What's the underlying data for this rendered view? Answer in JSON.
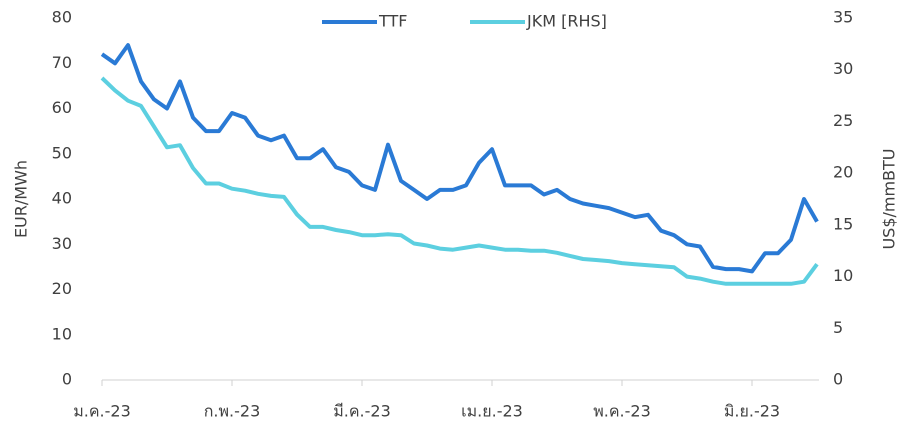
{
  "chart_data": {
    "type": "line",
    "categories": [
      "ม.ค.-23",
      null,
      null,
      null,
      null,
      null,
      null,
      null,
      null,
      null,
      "ก.พ.-23",
      null,
      null,
      null,
      null,
      null,
      null,
      null,
      null,
      null,
      "มี.ค.-23",
      null,
      null,
      null,
      null,
      null,
      null,
      null,
      null,
      null,
      "เม.ย.-23",
      null,
      null,
      null,
      null,
      null,
      null,
      null,
      null,
      null,
      "พ.ค.-23",
      null,
      null,
      null,
      null,
      null,
      null,
      null,
      null,
      null,
      "มิ.ย.-23",
      null,
      null,
      null,
      null,
      null
    ],
    "series": [
      {
        "name": "TTF",
        "color": "#2a7ad5",
        "values": [
          72,
          70,
          74,
          66,
          62,
          60,
          66,
          58,
          55,
          55,
          59,
          58,
          54,
          53,
          54,
          49,
          49,
          51,
          47,
          46,
          43,
          42,
          52,
          44,
          42,
          40,
          42,
          42,
          43,
          48,
          51,
          43,
          43,
          43,
          41,
          42,
          40,
          39,
          38.5,
          38,
          37,
          36,
          36.5,
          33,
          32,
          30,
          29.5,
          25,
          24.5,
          24.5,
          24,
          28,
          28,
          31,
          40,
          35
        ]
      },
      {
        "name": "JKM [RHS]",
        "color": "#5ccfe0",
        "axis": "y2",
        "values": [
          29.2,
          28,
          27,
          26.5,
          24.5,
          22.5,
          22.7,
          20.5,
          19,
          19,
          18.5,
          18.3,
          18,
          17.8,
          17.7,
          16,
          14.8,
          14.8,
          14.5,
          14.3,
          14,
          14,
          14.1,
          14,
          13.2,
          13,
          12.7,
          12.6,
          12.8,
          13,
          12.8,
          12.6,
          12.6,
          12.5,
          12.5,
          12.3,
          12,
          11.7,
          11.6,
          11.5,
          11.3,
          11.2,
          11.1,
          11,
          10.9,
          10,
          9.8,
          9.5,
          9.3,
          9.3,
          9.3,
          9.3,
          9.3,
          9.3,
          9.5,
          11.2
        ]
      }
    ],
    "y_label": "EUR/MWh",
    "y2_label": "US$/mmBTU",
    "ylim": [
      0,
      80
    ],
    "yticks": [
      0,
      10,
      20,
      30,
      40,
      50,
      60,
      70,
      80
    ],
    "y2lim": [
      0,
      35
    ],
    "y2ticks": [
      0,
      5,
      10,
      15,
      20,
      25,
      30,
      35
    ],
    "legend": "top"
  }
}
